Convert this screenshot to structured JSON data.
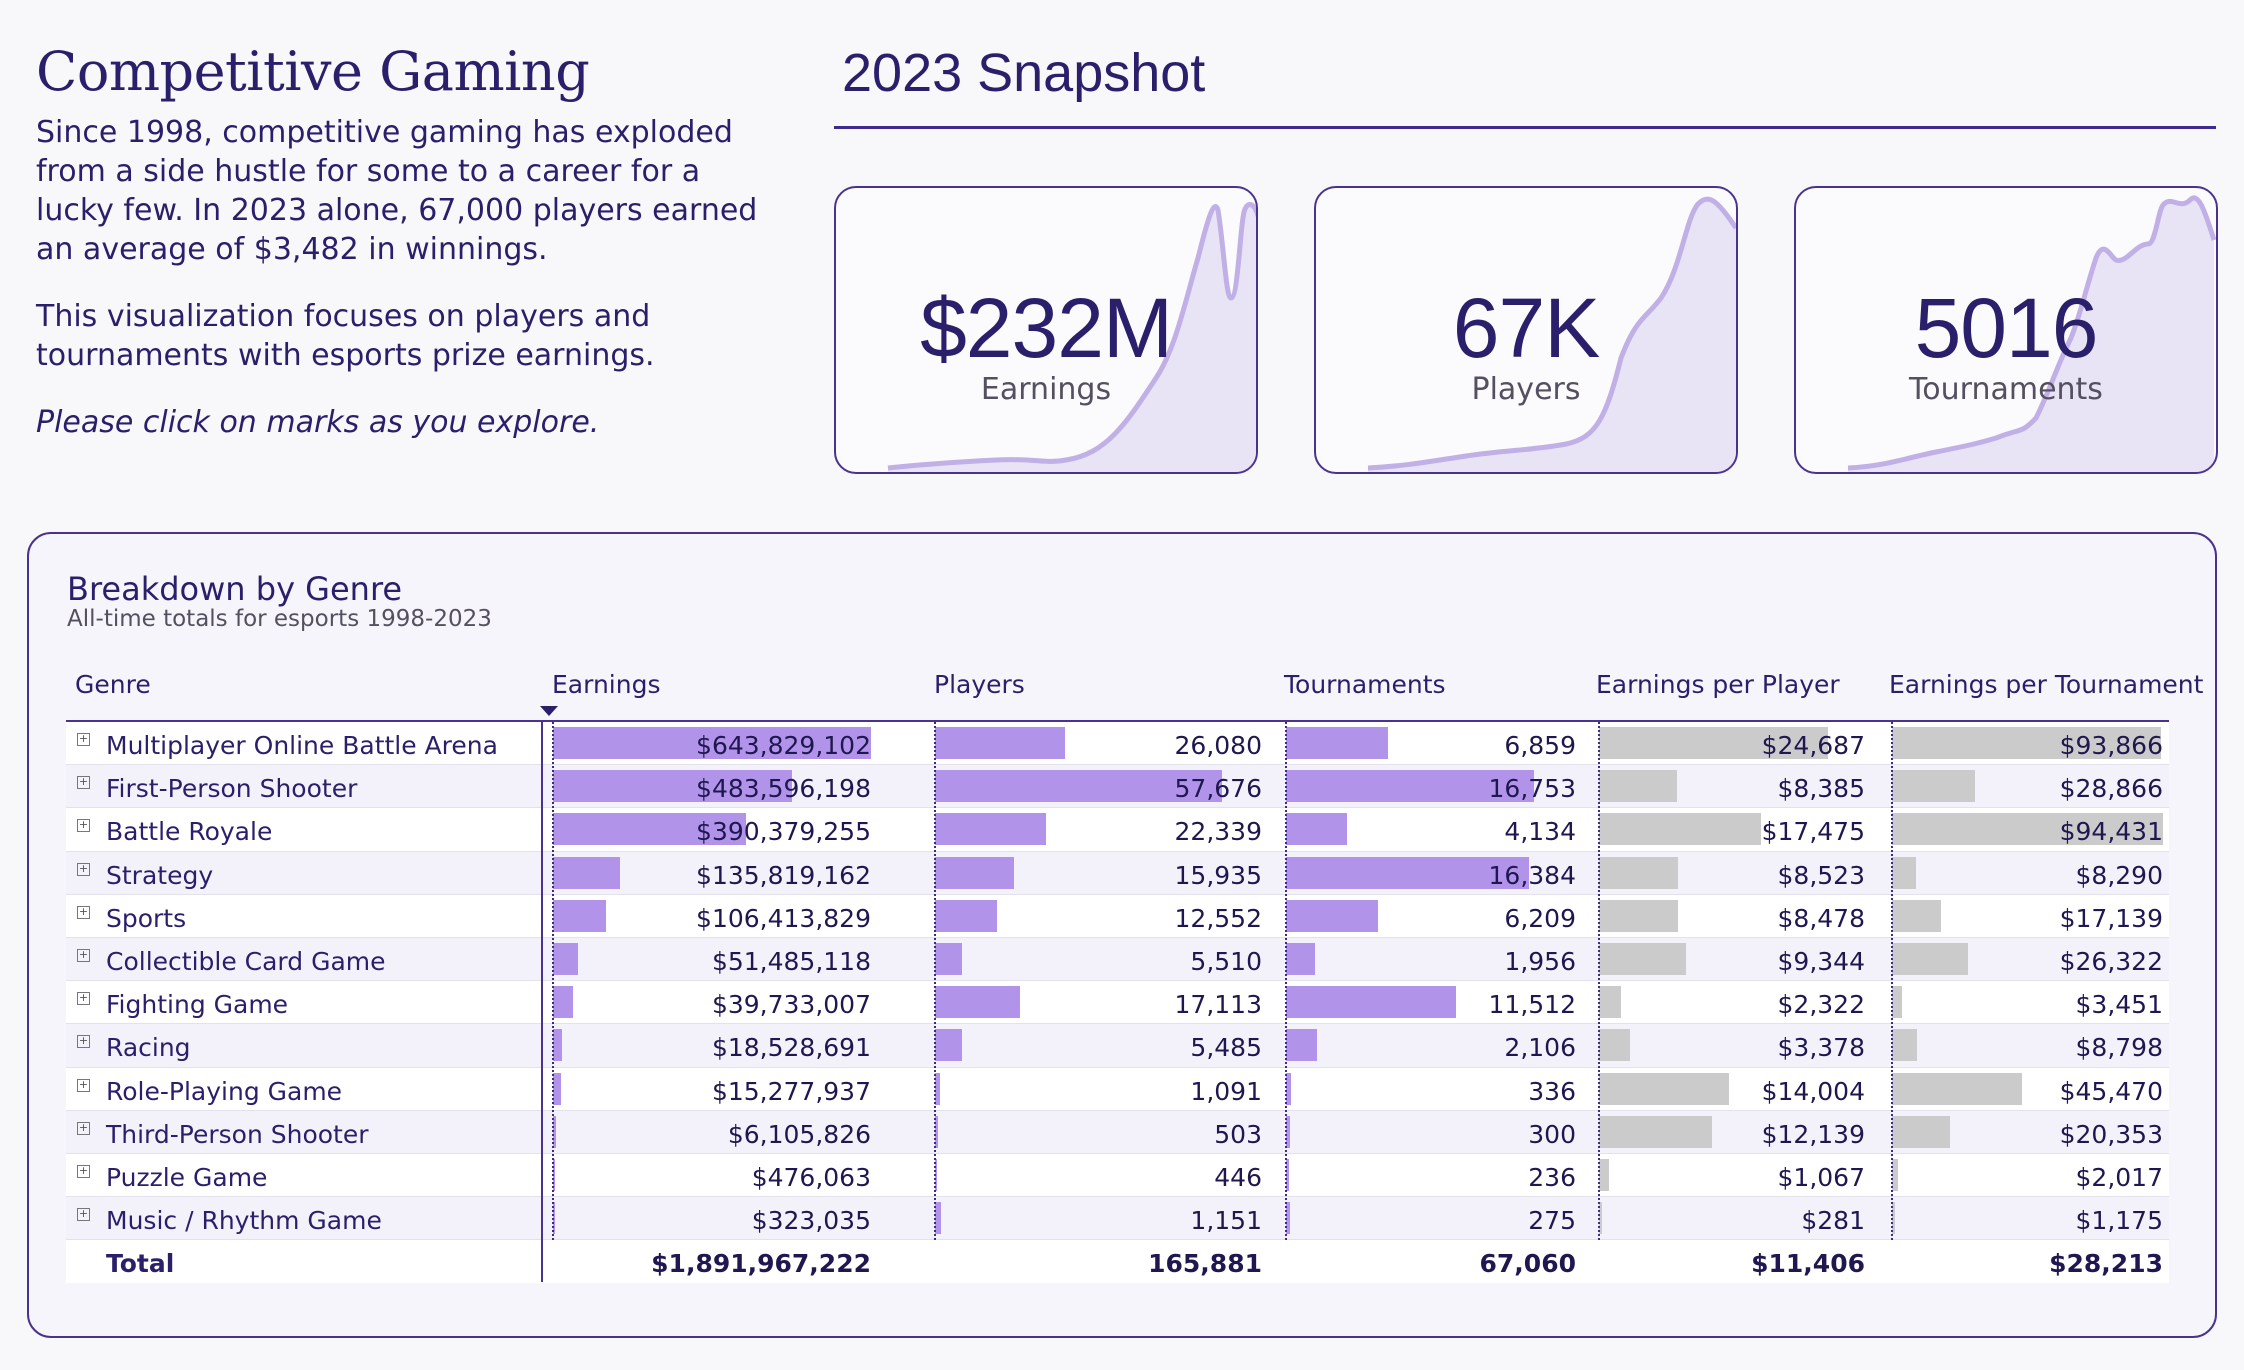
{
  "intro": {
    "title": "Competitive Gaming",
    "para1": "Since 1998, competitive gaming has exploded from a side hustle for some to a career for a lucky few. In 2023 alone, 67,000 players earned an average of $3,482 in winnings.",
    "para2": "This visualization focuses on players and tournaments with esports prize earnings.",
    "para3": "Please click on marks as you explore."
  },
  "snapshot": {
    "title": "2023 Snapshot",
    "kpis": [
      {
        "value": "$232M",
        "label": "Earnings"
      },
      {
        "value": "67K",
        "label": "Players"
      },
      {
        "value": "5016",
        "label": "Tournaments"
      }
    ],
    "accent_line": "#c0b0e6",
    "accent_fill": "#e9e3f6"
  },
  "breakdown": {
    "title": "Breakdown by Genre",
    "subtitle": "All-time totals for esports 1998-2023",
    "columns": [
      "Genre",
      "Earnings",
      "Players",
      "Tournaments",
      "Earnings per Player",
      "Earnings per Tournament"
    ],
    "bar_purple": "#b293ea",
    "bar_gray": "#cbcbcb",
    "rows": [
      {
        "genre": "Multiplayer Online Battle Arena",
        "earnings": "$643,829,102",
        "players": "26,080",
        "tournaments": "6,859",
        "epp": "$24,687",
        "ept": "$93,866"
      },
      {
        "genre": "First-Person Shooter",
        "earnings": "$483,596,198",
        "players": "57,676",
        "tournaments": "16,753",
        "epp": "$8,385",
        "ept": "$28,866"
      },
      {
        "genre": "Battle Royale",
        "earnings": "$390,379,255",
        "players": "22,339",
        "tournaments": "4,134",
        "epp": "$17,475",
        "ept": "$94,431"
      },
      {
        "genre": "Strategy",
        "earnings": "$135,819,162",
        "players": "15,935",
        "tournaments": "16,384",
        "epp": "$8,523",
        "ept": "$8,290"
      },
      {
        "genre": "Sports",
        "earnings": "$106,413,829",
        "players": "12,552",
        "tournaments": "6,209",
        "epp": "$8,478",
        "ept": "$17,139"
      },
      {
        "genre": "Collectible Card Game",
        "earnings": "$51,485,118",
        "players": "5,510",
        "tournaments": "1,956",
        "epp": "$9,344",
        "ept": "$26,322"
      },
      {
        "genre": "Fighting Game",
        "earnings": "$39,733,007",
        "players": "17,113",
        "tournaments": "11,512",
        "epp": "$2,322",
        "ept": "$3,451"
      },
      {
        "genre": "Racing",
        "earnings": "$18,528,691",
        "players": "5,485",
        "tournaments": "2,106",
        "epp": "$3,378",
        "ept": "$8,798"
      },
      {
        "genre": "Role-Playing Game",
        "earnings": "$15,277,937",
        "players": "1,091",
        "tournaments": "336",
        "epp": "$14,004",
        "ept": "$45,470"
      },
      {
        "genre": "Third-Person Shooter",
        "earnings": "$6,105,826",
        "players": "503",
        "tournaments": "300",
        "epp": "$12,139",
        "ept": "$20,353"
      },
      {
        "genre": "Puzzle Game",
        "earnings": "$476,063",
        "players": "446",
        "tournaments": "236",
        "epp": "$1,067",
        "ept": "$2,017"
      },
      {
        "genre": "Music / Rhythm Game",
        "earnings": "$323,035",
        "players": "1,151",
        "tournaments": "275",
        "epp": "$281",
        "ept": "$1,175"
      }
    ],
    "total": {
      "label": "Total",
      "earnings": "$1,891,967,222",
      "players": "165,881",
      "tournaments": "67,060",
      "epp": "$11,406",
      "ept": "$28,213"
    }
  }
}
